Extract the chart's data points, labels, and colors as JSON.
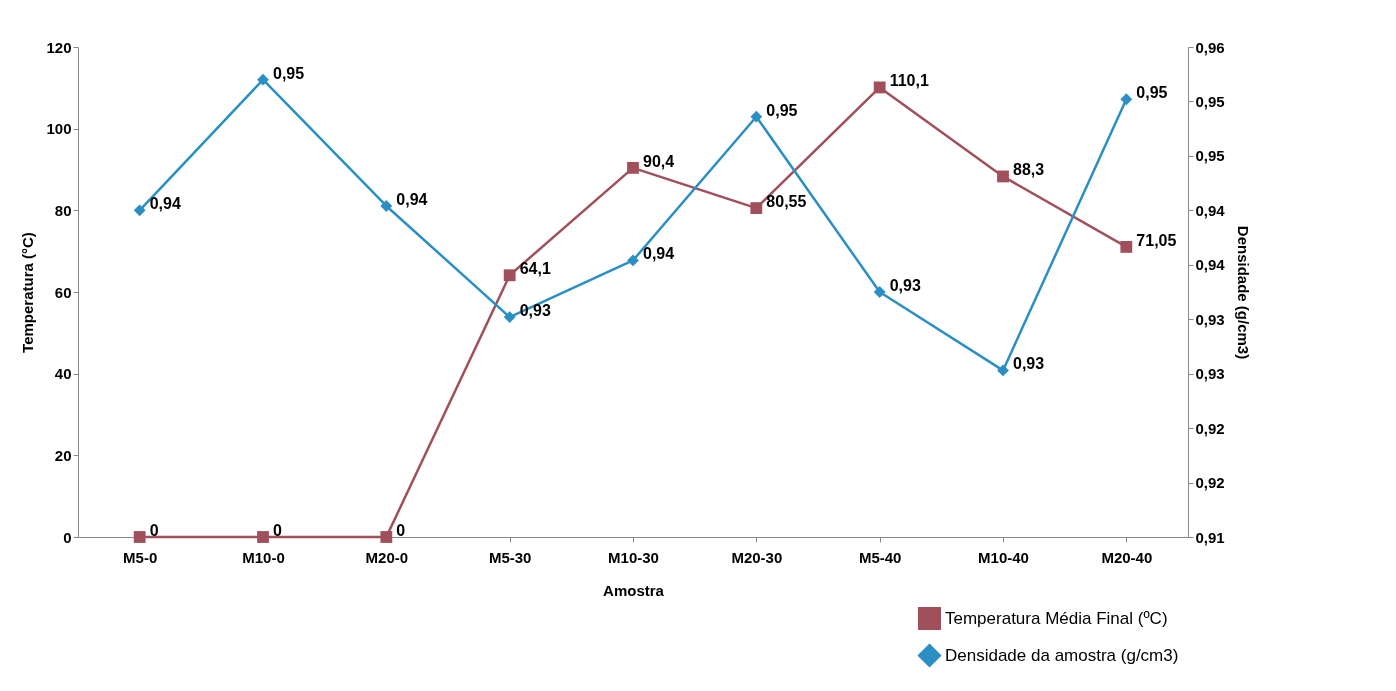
{
  "chart_data": {
    "type": "line",
    "xlabel": "Amostra",
    "ylabel": "Temperatura (°C)",
    "y2label": "Densidade (g/cm3)",
    "categories": [
      "M5-0",
      "M10-0",
      "M20-0",
      "M5-30",
      "M10-30",
      "M20-30",
      "M5-40",
      "M10-40",
      "M20-40"
    ],
    "ylim": [
      0,
      120
    ],
    "yticks": [
      0,
      20,
      40,
      60,
      80,
      100,
      120
    ],
    "y2lim": [
      0.91,
      0.955
    ],
    "y2ticks": [
      {
        "value": 0.91,
        "label": "0,91"
      },
      {
        "value": 0.915,
        "label": "0,92"
      },
      {
        "value": 0.92,
        "label": "0,92"
      },
      {
        "value": 0.925,
        "label": "0,93"
      },
      {
        "value": 0.93,
        "label": "0,93"
      },
      {
        "value": 0.935,
        "label": "0,94"
      },
      {
        "value": 0.94,
        "label": "0,94"
      },
      {
        "value": 0.945,
        "label": "0,95"
      },
      {
        "value": 0.95,
        "label": "0,95"
      },
      {
        "value": 0.955,
        "label": "0,96"
      }
    ],
    "series": [
      {
        "name": "Temperatura Média Final (ºC)",
        "color": "#a0505a",
        "marker": "square",
        "values": [
          0,
          0,
          0,
          64.1,
          90.4,
          80.55,
          110.1,
          88.3,
          71.05
        ],
        "value_labels": [
          "0",
          "0",
          "0",
          "64,1",
          "90,4",
          "80,55",
          "110,1",
          "88,3",
          "71,05"
        ]
      },
      {
        "name": "Densidade da amostra (g/cm3)",
        "color": "#2b8fc4",
        "marker": "diamond",
        "axis": "y2",
        "values": [
          0.94,
          0.952,
          0.9404,
          0.9302,
          0.9354,
          0.9486,
          0.9325,
          0.9253,
          0.9502
        ],
        "value_labels": [
          "0,94",
          "0,95",
          "0,94",
          "0,93",
          "0,94",
          "0,95",
          "0,93",
          "0,93",
          "0,95"
        ]
      }
    ],
    "legend": "bottom right",
    "grid": false
  }
}
